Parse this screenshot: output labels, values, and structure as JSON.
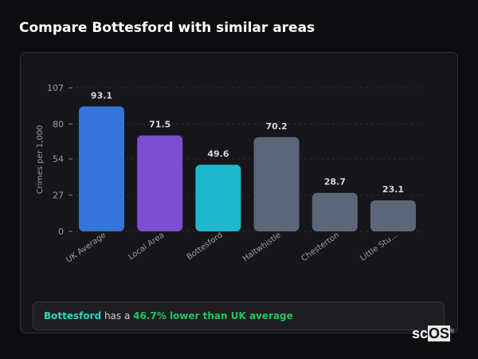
{
  "title": "Compare Bottesford with similar areas",
  "chart_data": {
    "type": "bar",
    "categories": [
      "UK Average",
      "Local Area",
      "Bottesford",
      "Haltwhistle",
      "Chesterton",
      "Little Stu..."
    ],
    "values": [
      93.1,
      71.5,
      49.6,
      70.2,
      28.7,
      23.1
    ],
    "value_labels": [
      "93.1",
      "71.5",
      "49.6",
      "70.2",
      "28.7",
      "23.1"
    ],
    "colors": [
      "#3574d9",
      "#7b4fd2",
      "#1fb8cd",
      "#5b6679",
      "#5b6679",
      "#5b6679"
    ],
    "ylabel": "Crimes per 1,000",
    "yticks": [
      0,
      27,
      54,
      80,
      107
    ],
    "ylim": [
      0,
      107
    ],
    "grid": true
  },
  "footer": {
    "area": "Bottesford",
    "middle": " has a ",
    "comparison": "46.7% lower than UK average"
  },
  "logo": {
    "text1": "sc",
    "text2": "OS"
  }
}
